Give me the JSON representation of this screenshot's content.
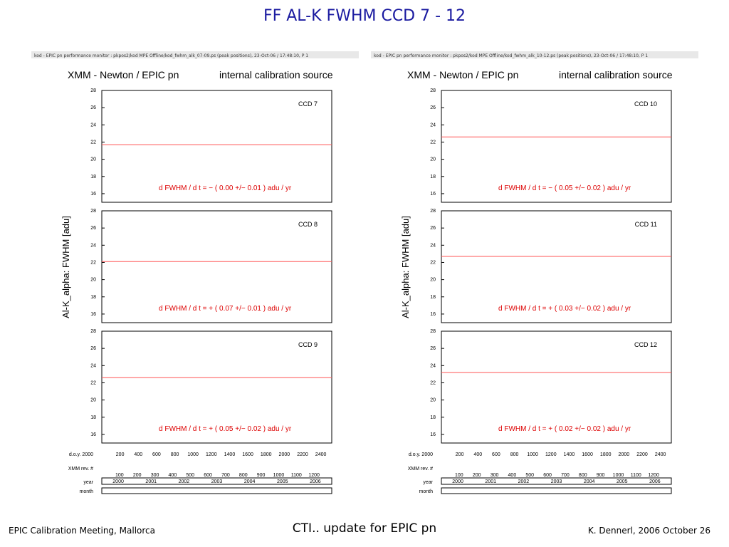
{
  "slide": {
    "title": "FF   AL-K   FWHM   CCD 7 - 12",
    "center": "CTI.. update for EPIC pn",
    "footer_left": "EPIC Calibration Meeting, Mallorca",
    "footer_right": "K. Dennerl, 2006 October 26"
  },
  "chart_data": [
    {
      "type": "scatter",
      "header": "kod - EPIC pn performance monitor : pkpos2/kod     MPE   Offline/kod_fwhm_alk_07-09.ps (peak positions), 23-Oct-06 / 17:48:10, P   1",
      "title_left": "XMM - Newton  /  EPIC pn",
      "title_right": "internal calibration source",
      "ylabel": "Al-K_alpha:  FWHM  [adu]",
      "ylim": [
        15,
        28
      ],
      "panels": [
        {
          "ccd": "CCD  7",
          "slope": "d FWHM / d t = − ( 0.00 +/− 0.01 )  adu / yr",
          "fit": 21.7
        },
        {
          "ccd": "CCD  8",
          "slope": "d FWHM / d t = + ( 0.07 +/− 0.01 )  adu / yr",
          "fit": 22.1
        },
        {
          "ccd": "CCD  9",
          "slope": "d FWHM / d t = + ( 0.05 +/− 0.02 )  adu / yr",
          "fit": 22.6
        }
      ]
    },
    {
      "type": "scatter",
      "header": "kod - EPIC pn performance monitor : pkpos2/kod     MPE   Offline/kod_fwhm_alk_10-12.ps (peak positions), 23-Oct-06 / 17:48:10, P   1",
      "title_left": "XMM - Newton  /  EPIC pn",
      "title_right": "internal calibration source",
      "ylabel": "Al-K_alpha:  FWHM  [adu]",
      "ylim": [
        15,
        28
      ],
      "panels": [
        {
          "ccd": "CCD  10",
          "slope": "d FWHM / d t = − ( 0.05 +/− 0.02 )  adu / yr",
          "fit": 22.6
        },
        {
          "ccd": "CCD  11",
          "slope": "d FWHM / d t = + ( 0.03 +/− 0.02 )  adu / yr",
          "fit": 22.7
        },
        {
          "ccd": "CCD  12",
          "slope": "d FWHM / d t = + ( 0.02 +/− 0.02 )  adu / yr",
          "fit": 23.2
        }
      ]
    }
  ],
  "axes": {
    "yticks": [
      "28",
      "26",
      "24",
      "22",
      "20",
      "18",
      "16"
    ],
    "doy_label": "d.o.y. 2000",
    "doy": [
      "200",
      "400",
      "600",
      "800",
      "1000",
      "1200",
      "1400",
      "1600",
      "1800",
      "2000",
      "2200",
      "2400"
    ],
    "rev_label": "XMM rev. #",
    "rev": [
      "100",
      "200",
      "300",
      "400",
      "500",
      "600",
      "700",
      "800",
      "900",
      "1000",
      "1100",
      "1200"
    ],
    "year_label": "year",
    "years": [
      "2000",
      "2001",
      "2002",
      "2003",
      "2004",
      "2005",
      "2006"
    ],
    "month_label": "month"
  }
}
